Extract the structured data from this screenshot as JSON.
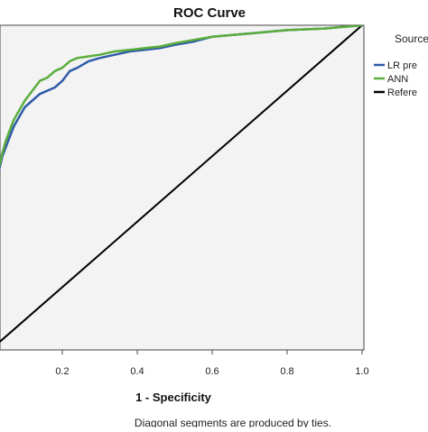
{
  "chart_data": {
    "type": "line",
    "title": "ROC Curve",
    "xlabel": "1 - Specificity",
    "ylabel": "",
    "xlim": [
      0,
      1
    ],
    "ylim": [
      0,
      1
    ],
    "x_ticks": [
      "0.2",
      "0.4",
      "0.6",
      "0.8",
      "1.0"
    ],
    "grid": false,
    "legend_position": "right",
    "legend_title": "Source-Cu",
    "legend_entries": [
      "LR pre",
      "ANN",
      "Refere"
    ],
    "footnote": "Diagonal segments are produced by ties.",
    "series": [
      {
        "name": "LR pre",
        "color": "#2e5aa8",
        "x": [
          0,
          0.01,
          0.02,
          0.03,
          0.04,
          0.05,
          0.06,
          0.07,
          0.08,
          0.09,
          0.1,
          0.12,
          0.14,
          0.16,
          0.18,
          0.2,
          0.22,
          0.24,
          0.27,
          0.3,
          0.34,
          0.38,
          0.42,
          0.46,
          0.5,
          0.55,
          0.6,
          0.65,
          0.7,
          0.8,
          0.9,
          1.0
        ],
        "y": [
          0.35,
          0.43,
          0.5,
          0.55,
          0.6,
          0.63,
          0.66,
          0.69,
          0.71,
          0.73,
          0.75,
          0.77,
          0.79,
          0.8,
          0.81,
          0.83,
          0.86,
          0.87,
          0.89,
          0.9,
          0.91,
          0.92,
          0.925,
          0.93,
          0.94,
          0.95,
          0.965,
          0.97,
          0.975,
          0.985,
          0.99,
          1.0
        ]
      },
      {
        "name": "ANN",
        "color": "#5aad3c",
        "x": [
          0,
          0.01,
          0.02,
          0.03,
          0.04,
          0.05,
          0.06,
          0.07,
          0.08,
          0.09,
          0.1,
          0.12,
          0.14,
          0.16,
          0.18,
          0.2,
          0.22,
          0.24,
          0.27,
          0.3,
          0.34,
          0.38,
          0.42,
          0.46,
          0.5,
          0.55,
          0.6,
          0.65,
          0.7,
          0.8,
          0.9,
          1.0
        ],
        "y": [
          0.35,
          0.44,
          0.51,
          0.56,
          0.61,
          0.65,
          0.68,
          0.71,
          0.73,
          0.75,
          0.77,
          0.8,
          0.83,
          0.84,
          0.86,
          0.87,
          0.89,
          0.9,
          0.905,
          0.91,
          0.92,
          0.925,
          0.93,
          0.935,
          0.945,
          0.955,
          0.965,
          0.97,
          0.975,
          0.985,
          0.99,
          1.0
        ]
      },
      {
        "name": "Refere",
        "color": "#000000",
        "x": [
          0,
          1
        ],
        "y": [
          0,
          1
        ]
      }
    ]
  }
}
